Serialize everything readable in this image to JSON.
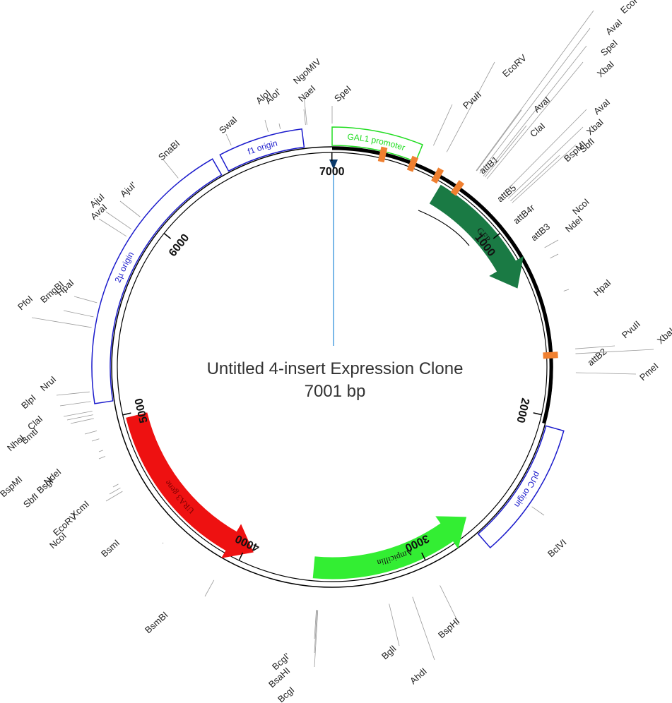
{
  "title": "Untitled 4-insert Expression Clone",
  "length_label": "7001 bp",
  "total_bp": 7001,
  "tick_labels": [
    "1000",
    "2000",
    "3000",
    "4000",
    "5000",
    "6000",
    "7000"
  ],
  "features": [
    {
      "label": "f1 origin",
      "start": 6460,
      "end": 6860,
      "type": "box",
      "stroke": "#1a1acc",
      "fill": "#ffffff",
      "text_color": "#1a1acc"
    },
    {
      "label": "2µ origin",
      "start": 5080,
      "end": 6420,
      "type": "box",
      "stroke": "#1a1acc",
      "fill": "#ffffff",
      "text_color": "#1a1acc"
    },
    {
      "label": "GAL1 promoter",
      "start": 0,
      "end": 430,
      "type": "box",
      "stroke": "#22dd22",
      "fill": "#ffffff",
      "text_color": "#22dd22"
    },
    {
      "label": "pUC origin",
      "start": 2050,
      "end": 2700,
      "type": "box",
      "stroke": "#1a1acc",
      "fill": "#ffffff",
      "text_color": "#1a1acc"
    },
    {
      "label": "GFP",
      "start": 600,
      "end": 1300,
      "type": "arrow",
      "stroke": "#1a7a44",
      "fill": "#1a7a44",
      "text_color": "#111111"
    },
    {
      "label": "Ampicillin",
      "start": 2690,
      "end": 3600,
      "type": "arrow",
      "reverse": true,
      "stroke": "#33ee33",
      "fill": "#33ee33",
      "text_color": "#111111"
    },
    {
      "label": "URA3 gene",
      "start": 3950,
      "end": 4980,
      "type": "arrow",
      "reverse": true,
      "stroke": "#ee1111",
      "fill": "#ee1111",
      "text_color": "#7a0000"
    }
  ],
  "att_sites": [
    "attB1",
    "attB5",
    "attB4r",
    "attB3",
    "attB2"
  ],
  "restriction_sites": [
    "EcoRV",
    "AvaI",
    "SpeI",
    "XbaI",
    "EcoRV",
    "PvuII",
    "AvaI",
    "ClaI",
    "AvaI",
    "XbaI",
    "SbfI",
    "BspMI",
    "NcoI",
    "NdeI",
    "HpaI",
    "PvuII",
    "XbaI",
    "PmeI",
    "BclVI",
    "BspHI",
    "AhdI",
    "BglI",
    "BcgI'",
    "BsaHI",
    "BcgI",
    "BsmBI",
    "BsmI",
    "NcoI",
    "EcoRV",
    "XcmI",
    "BspMI",
    "SbfI",
    "BsgI",
    "NdeI",
    "NheI",
    "BmtI",
    "ClaI",
    "BlpI",
    "NruI",
    "PfoI",
    "BmgBI",
    "HpaI",
    "AvaI",
    "AjuI",
    "AjuI'",
    "SnaBI",
    "SwaI",
    "AloI",
    "AloI'",
    "NaeI",
    "NgoMIV",
    "SpeI"
  ]
}
